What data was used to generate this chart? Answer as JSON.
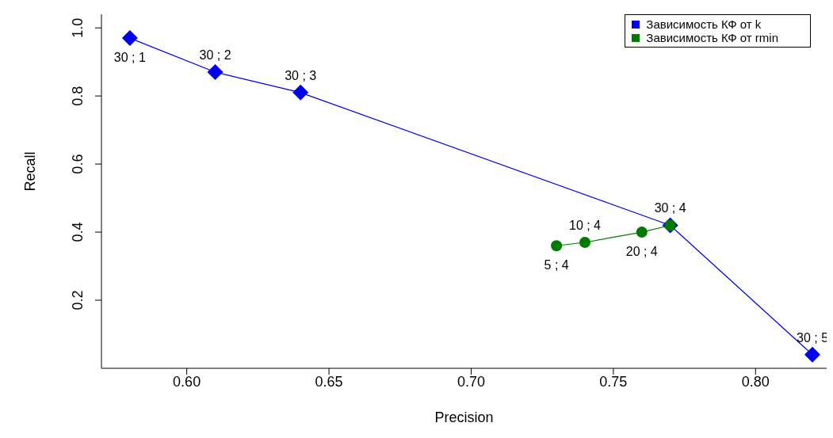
{
  "chart_data": {
    "type": "scatter",
    "xlabel": "Precision",
    "ylabel": "Recall",
    "xlim": [
      0.57,
      0.825
    ],
    "ylim": [
      0.0,
      1.04
    ],
    "xticks": [
      {
        "value": 0.6,
        "label": "0.60"
      },
      {
        "value": 0.65,
        "label": "0.65"
      },
      {
        "value": 0.7,
        "label": "0.70"
      },
      {
        "value": 0.75,
        "label": "0.75"
      },
      {
        "value": 0.8,
        "label": "0.80"
      }
    ],
    "yticks": [
      0.2,
      0.4,
      0.6,
      {
        "value": 0.8,
        "label": "0.8"
      },
      {
        "value": 1.0,
        "label": "1.0"
      }
    ],
    "grid": false,
    "legend": "top right",
    "series": [
      {
        "name": "Зависимость КФ от k",
        "color": "#0000ee",
        "marker": "diamond",
        "x": [
          0.58,
          0.61,
          0.64,
          0.77,
          0.82
        ],
        "values": [
          0.97,
          0.87,
          0.81,
          0.42,
          0.04
        ],
        "value_labels": [
          "30 ; 1",
          "30 ; 2",
          "30 ; 3",
          "30 ; 4",
          "30 ; 5"
        ]
      },
      {
        "name": "Зависимость КФ от rmin",
        "color": "#007a00",
        "marker": "circle",
        "x": [
          0.73,
          0.74,
          0.76,
          0.77
        ],
        "values": [
          0.36,
          0.37,
          0.4,
          0.42
        ],
        "value_labels": [
          "5 ; 4",
          "10 ; 4",
          "20 ; 4",
          null
        ]
      }
    ]
  }
}
